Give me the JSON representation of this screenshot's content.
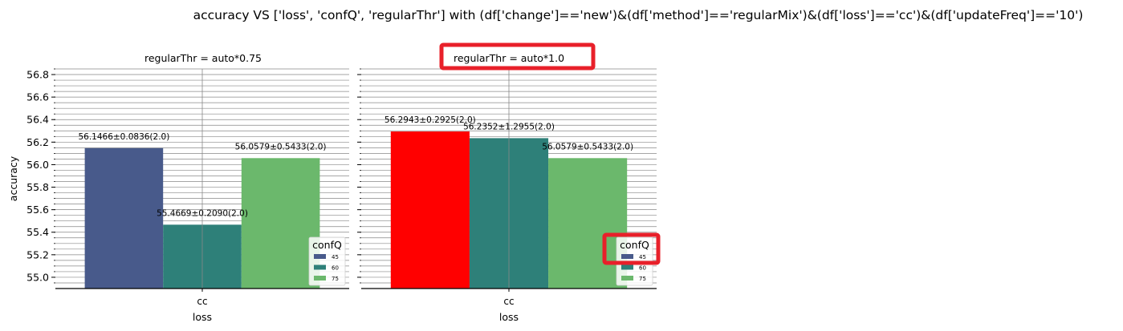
{
  "figure_title": "accuracy VS ['loss', 'confQ', 'regularThr'] with (df['change']=='new')&(df['method']=='regularMix')&(df['loss']=='cc')&(df['updateFreq']=='10')",
  "colors": {
    "c45": "#485a8b",
    "c60": "#2e8079",
    "c75": "#6bb86c",
    "highlight_bar": "#ff0000",
    "annotation_box": "#e8202a",
    "grid": "#888888"
  },
  "chart_data": [
    {
      "type": "bar",
      "title": "regularThr = auto*0.75",
      "xlabel": "loss",
      "ylabel": "accuracy",
      "categories": [
        "cc"
      ],
      "ylim": [
        54.9,
        56.85
      ],
      "yticks": [
        "55.0",
        "55.2",
        "55.4",
        "55.6",
        "55.8",
        "56.0",
        "56.2",
        "56.4",
        "56.6",
        "56.8"
      ],
      "grid": true,
      "legend": {
        "title": "confQ",
        "placement": "lower-right"
      },
      "series": [
        {
          "name": "45",
          "values": [
            56.1466
          ],
          "label": "56.1466±0.0836(2.0)"
        },
        {
          "name": "60",
          "values": [
            55.4669
          ],
          "label": "55.4669±0.2090(2.0)"
        },
        {
          "name": "75",
          "values": [
            56.0579
          ],
          "label": "56.0579±0.5433(2.0)"
        }
      ]
    },
    {
      "type": "bar",
      "title": "regularThr = auto*1.0",
      "xlabel": "loss",
      "ylabel": "",
      "categories": [
        "cc"
      ],
      "ylim": [
        54.9,
        56.85
      ],
      "yticks": [],
      "grid": true,
      "legend": {
        "title": "confQ",
        "placement": "lower-right"
      },
      "highlighted": {
        "title": true,
        "legend_title": true,
        "bar_series": "45"
      },
      "series": [
        {
          "name": "45",
          "values": [
            56.2943
          ],
          "label": "56.2943±0.2925(2.0)"
        },
        {
          "name": "60",
          "values": [
            56.2352
          ],
          "label": "56.2352±1.2955(2.0)"
        },
        {
          "name": "75",
          "values": [
            56.0579
          ],
          "label": "56.0579±0.5433(2.0)"
        }
      ]
    }
  ]
}
